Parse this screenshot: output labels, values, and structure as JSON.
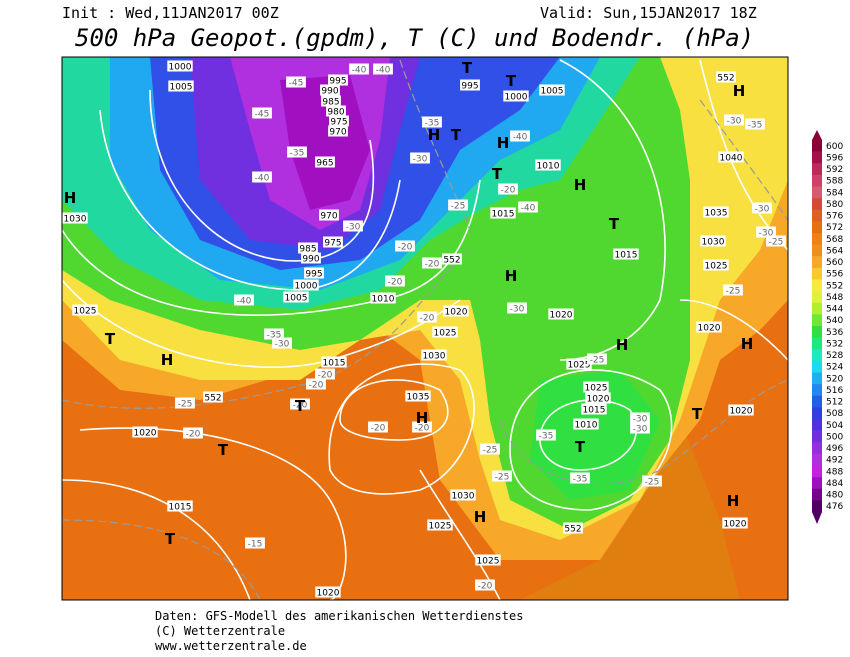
{
  "header": {
    "init": "Init : Wed,11JAN2017 00Z",
    "valid": "Valid: Sun,15JAN2017 18Z",
    "title": "500 hPa Geopot.(gpdm), T (C) und Bodendr. (hPa)"
  },
  "map": {
    "labels": [
      "1000",
      "1005",
      "995",
      "990",
      "985",
      "980",
      "975",
      "970",
      "965",
      "970",
      "975",
      "985",
      "990",
      "995",
      "1000",
      "1005",
      "1010",
      "1030",
      "1025",
      "1015",
      "1020",
      "1015",
      "1020",
      "1035",
      "1030",
      "1025",
      "1025",
      "1030",
      "1025",
      "1020",
      "995",
      "1000",
      "1005",
      "1010",
      "1015",
      "1015",
      "1020",
      "1025",
      "1025",
      "1020",
      "1015",
      "1010",
      "1040",
      "1035",
      "1030",
      "1025",
      "1020",
      "1020",
      "1020",
      "552",
      "552",
      "552",
      "552",
      "-45",
      "-40",
      "-40",
      "-45",
      "-35",
      "-40",
      "-30",
      "-30",
      "-35",
      "-25",
      "-20",
      "-20",
      "-20",
      "-40",
      "-35",
      "-30",
      "-20",
      "-20",
      "-25",
      "-20",
      "-20",
      "-20",
      "-20",
      "-25",
      "-25",
      "-35",
      "-35",
      "-30",
      "-30",
      "-25",
      "-30",
      "-25",
      "-20",
      "-40",
      "-40",
      "-30",
      "-35",
      "-30",
      "-30",
      "-25",
      "-25",
      "-15",
      "-20",
      "-20",
      "H",
      "H",
      "H",
      "H",
      "H",
      "H",
      "H",
      "H",
      "H",
      "H",
      "H",
      "H",
      "T",
      "T",
      "T",
      "T",
      "T",
      "T",
      "T",
      "T",
      "T",
      "T",
      "T"
    ]
  },
  "colorbar": {
    "levels": [
      600,
      596,
      592,
      588,
      584,
      580,
      576,
      572,
      568,
      564,
      560,
      556,
      552,
      548,
      544,
      540,
      536,
      532,
      528,
      524,
      520,
      516,
      512,
      508,
      504,
      500,
      496,
      492,
      488,
      484,
      480,
      476
    ],
    "colors": [
      "#8b0034",
      "#a8104a",
      "#c02858",
      "#d04068",
      "#d85a70",
      "#d84838",
      "#e06020",
      "#e87010",
      "#f08010",
      "#f09018",
      "#f8a828",
      "#f8c830",
      "#f8e840",
      "#e0f040",
      "#b0f030",
      "#70e830",
      "#30e040",
      "#20e880",
      "#20e8c0",
      "#20d8f0",
      "#20b0f0",
      "#2088f0",
      "#2060e8",
      "#3040e0",
      "#5030e0",
      "#7030e0",
      "#9030e0",
      "#b030e0",
      "#c820e0",
      "#a010c0",
      "#780090",
      "#500060"
    ]
  },
  "footer": {
    "line1": "Daten: GFS-Modell des amerikanischen Wetterdienstes",
    "line2": "(C) Wetterzentrale",
    "line3": "www.wetterzentrale.de"
  }
}
